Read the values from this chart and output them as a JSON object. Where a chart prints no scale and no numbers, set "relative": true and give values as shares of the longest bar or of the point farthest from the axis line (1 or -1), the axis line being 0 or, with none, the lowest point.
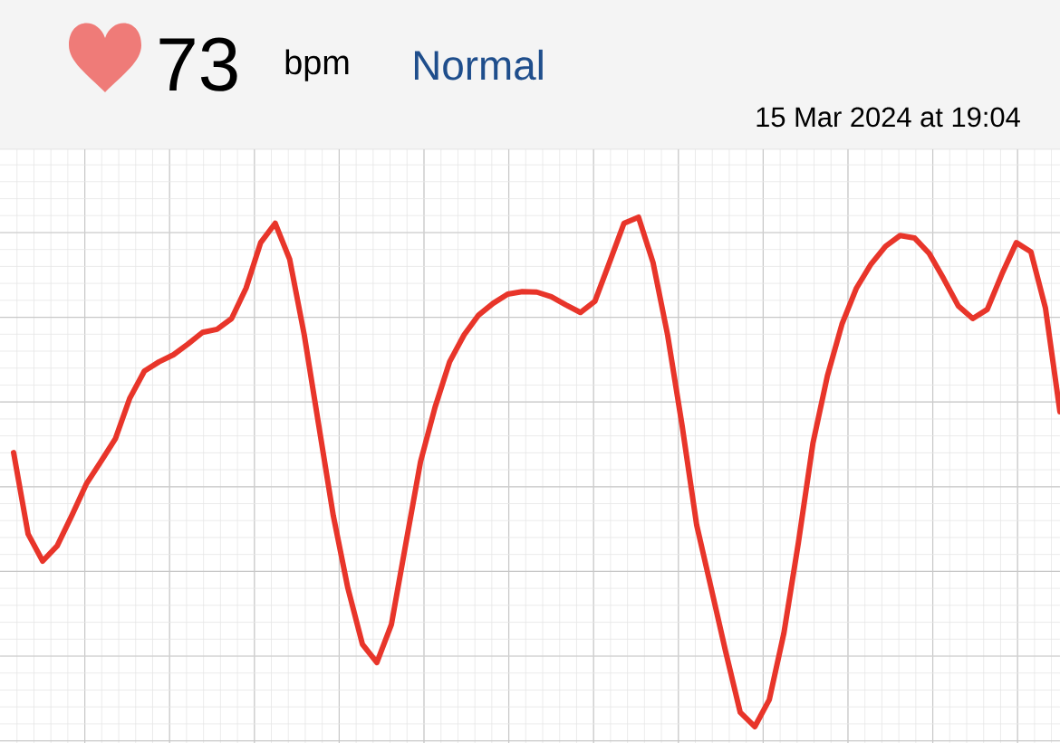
{
  "chart_data": {
    "type": "line",
    "relative": true,
    "grid": true,
    "line_style": "solid",
    "annotations": [
      "73",
      "bpm",
      "Normal",
      "15 Mar 2024 at 19:04"
    ],
    "categories": [
      null,
      null,
      null,
      null,
      null,
      null,
      null,
      null,
      null,
      null,
      null,
      null,
      null,
      null,
      null,
      null,
      null,
      null,
      null,
      null,
      null,
      null,
      null,
      null,
      null,
      null,
      null,
      null,
      null,
      null,
      null,
      null,
      null,
      null,
      null,
      null,
      null,
      null,
      null,
      null,
      null,
      null,
      null,
      null,
      null,
      null,
      null,
      null,
      null,
      null,
      null,
      null,
      null,
      null,
      null,
      null,
      null,
      null,
      null,
      null,
      null,
      null,
      null,
      null,
      null,
      null,
      null,
      null,
      null,
      null,
      null,
      null,
      null
    ],
    "series": [
      {
        "color": "#e8352a",
        "values": [
          0.538,
          0.378,
          0.325,
          0.355,
          0.414,
          0.476,
          0.52,
          0.565,
          0.645,
          0.698,
          0.716,
          0.73,
          0.751,
          0.774,
          0.78,
          0.801,
          0.861,
          0.95,
          0.988,
          0.917,
          0.769,
          0.591,
          0.414,
          0.272,
          0.162,
          0.126,
          0.201,
          0.361,
          0.52,
          0.627,
          0.716,
          0.769,
          0.808,
          0.831,
          0.849,
          0.854,
          0.853,
          0.844,
          0.828,
          0.813,
          0.835,
          0.911,
          0.988,
          1.0,
          0.911,
          0.769,
          0.591,
          0.396,
          0.272,
          0.147,
          0.028,
          0.0,
          0.053,
          0.183,
          0.361,
          0.556,
          0.689,
          0.79,
          0.861,
          0.908,
          0.943,
          0.964,
          0.959,
          0.929,
          0.879,
          0.826,
          0.801,
          0.819,
          0.888,
          0.95,
          0.932,
          0.822,
          0.618
        ]
      }
    ]
  }
}
